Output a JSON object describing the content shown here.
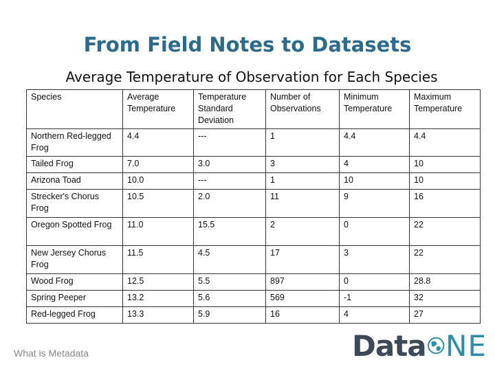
{
  "slide": {
    "title": "From Field Notes to Datasets",
    "subtitle": "Average Temperature of Observation for Each Species",
    "footer": "What is Metadata",
    "logo": {
      "part1": "Data",
      "part2": "NE",
      "globe_letter": "O",
      "accent": "#2c8ea8"
    }
  },
  "table": {
    "headers": [
      "Species",
      "Average Temperature",
      "Temperature Standard Deviation",
      "Number of Observations",
      "Minimum Temperature",
      "Maximum Temperature"
    ],
    "rows": [
      [
        "Northern Red-legged Frog",
        "4.4",
        "---",
        "1",
        "4.4",
        "4.4"
      ],
      [
        "Tailed Frog",
        "7.0",
        "3.0",
        "3",
        "4",
        "10"
      ],
      [
        "Arizona Toad",
        "10.0",
        "---",
        "1",
        "10",
        "10"
      ],
      [
        "Strecker's Chorus Frog",
        "10.5",
        "2.0",
        "11",
        "9",
        "16"
      ],
      [
        "Oregon Spotted Frog",
        "11.0",
        "15.5",
        "2",
        "0",
        "22"
      ],
      [
        "New Jersey Chorus Frog",
        "11.5",
        "4.5",
        "17",
        "3",
        "22"
      ],
      [
        "Wood Frog",
        "12.5",
        "5.5",
        "897",
        "0",
        "28.8"
      ],
      [
        "Spring Peeper",
        "13.2",
        "5.6",
        "569",
        "-1",
        "32"
      ],
      [
        "Red-legged Frog",
        "13.3",
        "5.9",
        "16",
        "4",
        "27"
      ]
    ]
  }
}
